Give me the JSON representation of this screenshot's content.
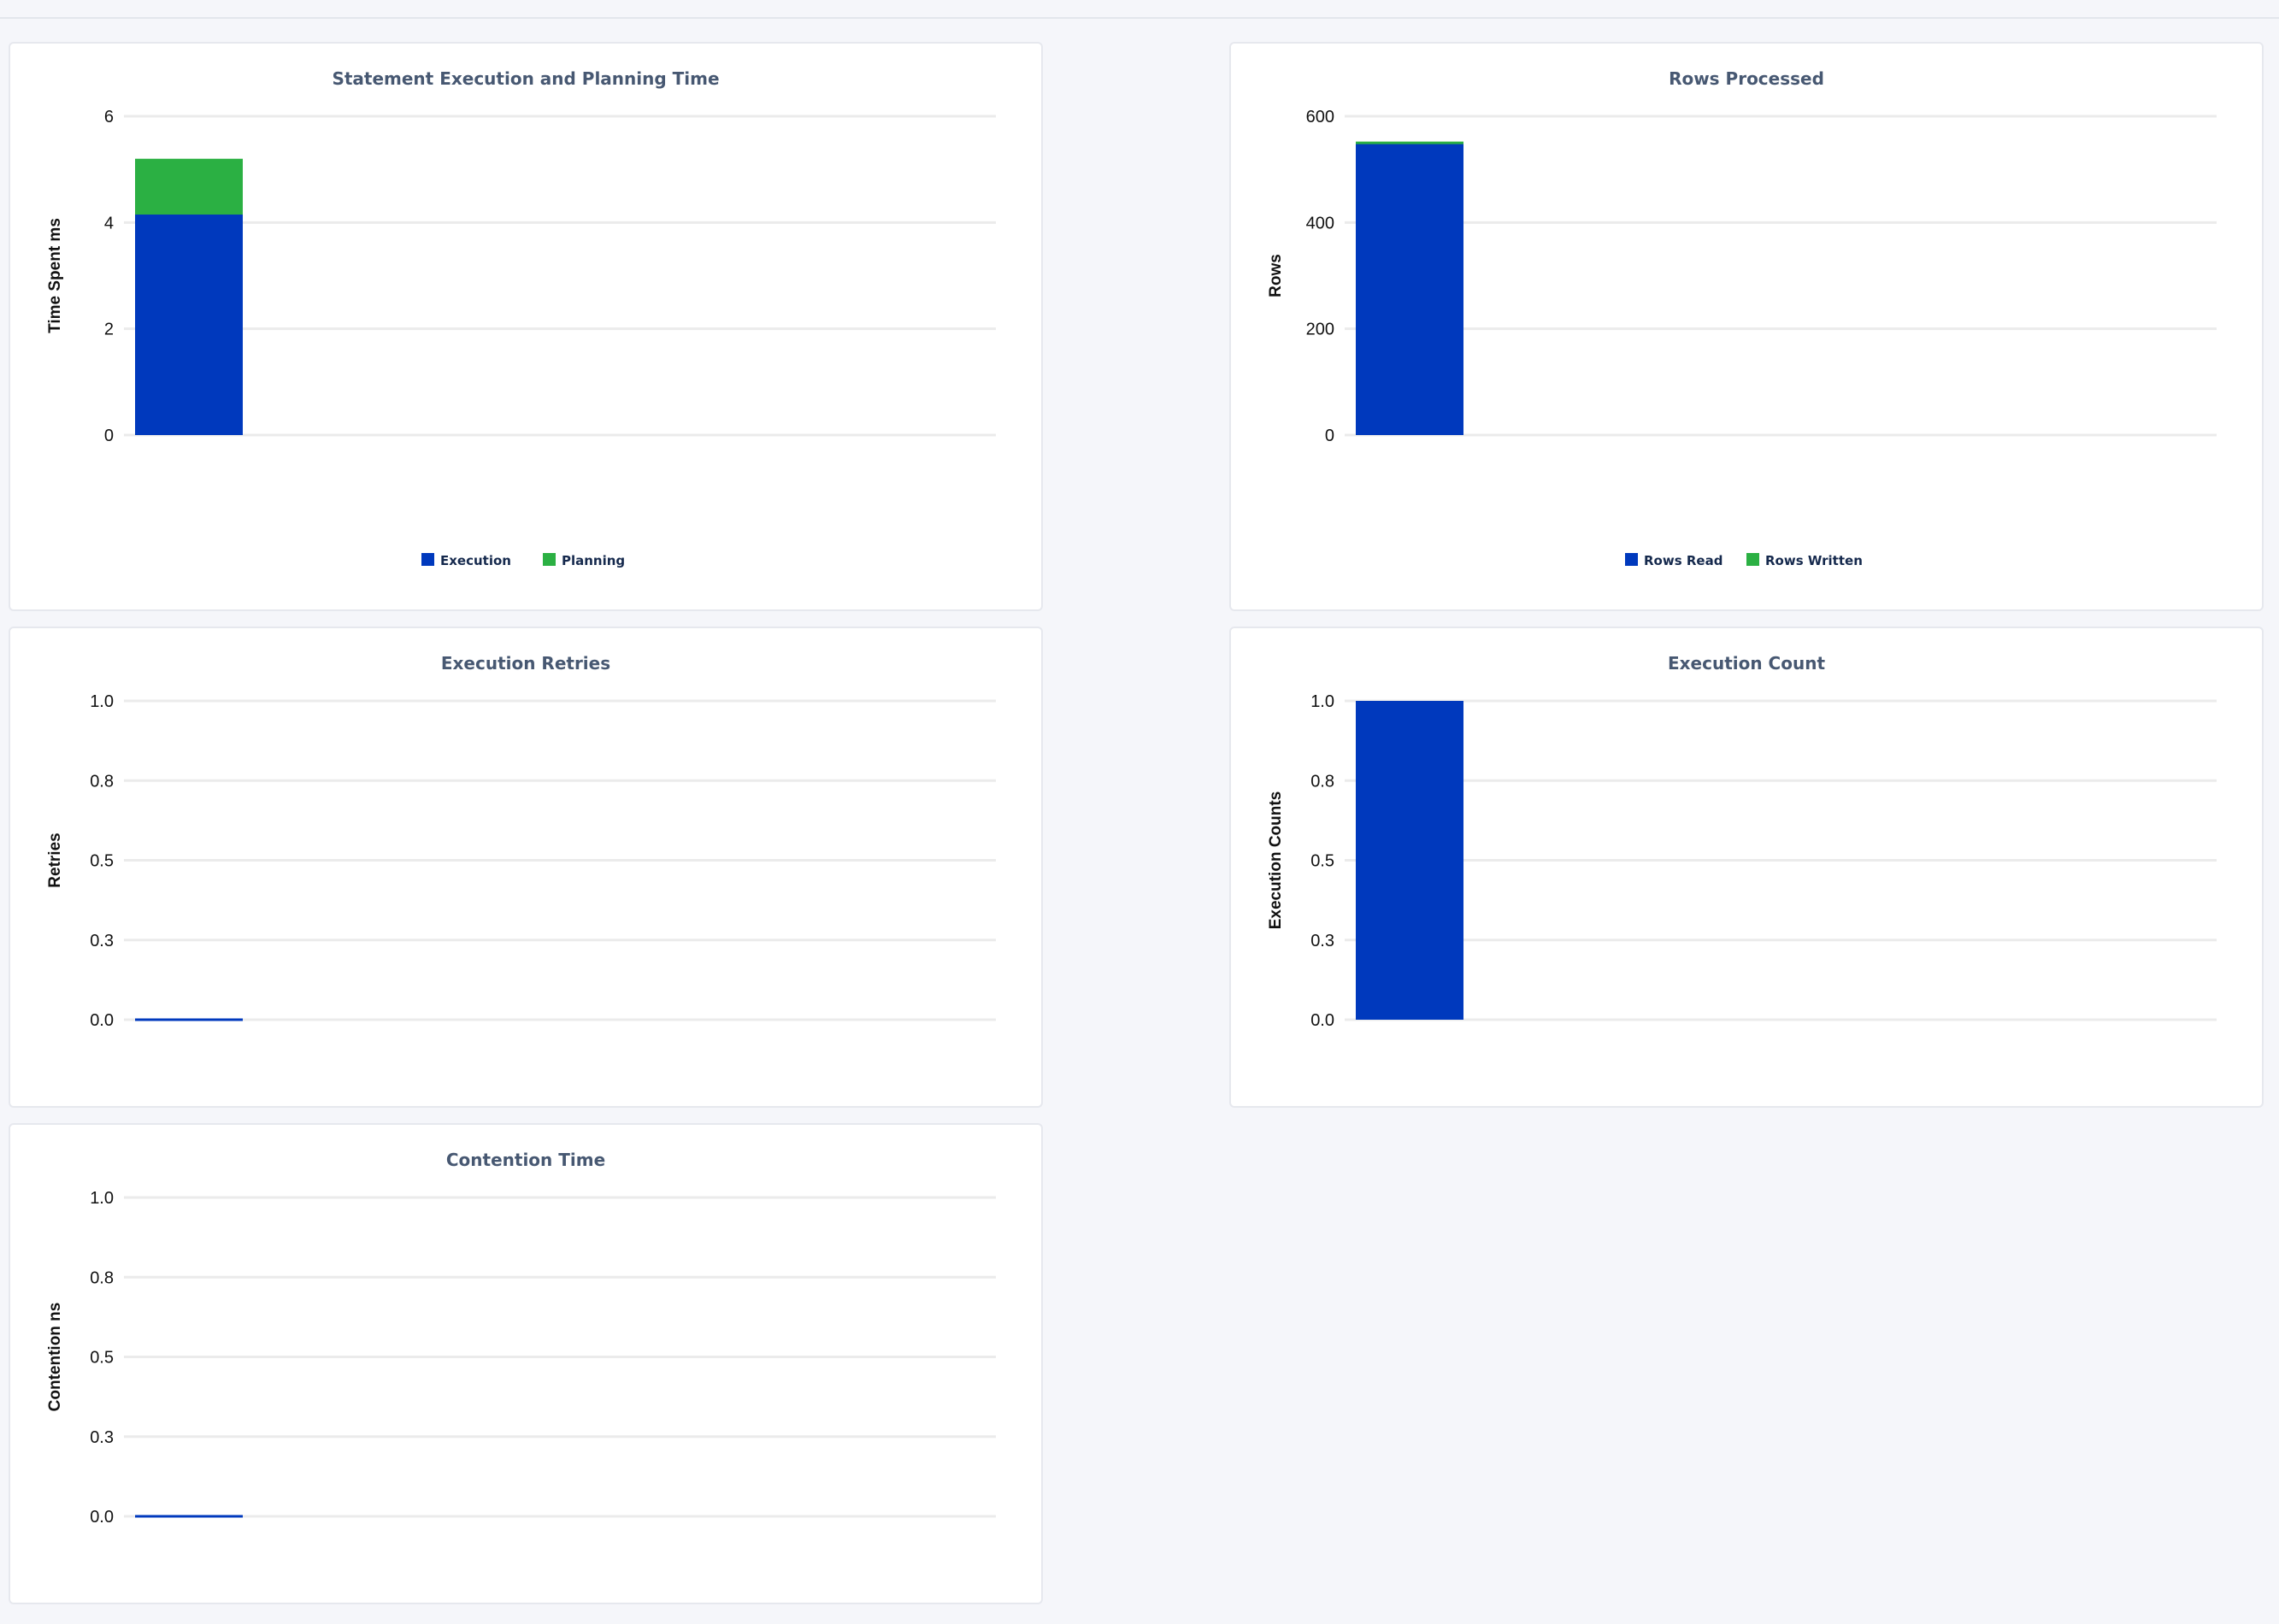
{
  "colors": {
    "blue": "#0039bd",
    "green": "#2bb043",
    "grid": "#ebebeb"
  },
  "chart_data": [
    {
      "type": "bar",
      "stacked": true,
      "title": "Statement Execution and Planning Time",
      "ylabel": "Time Spent ms",
      "ylim": [
        0,
        6
      ],
      "yticks": [
        0,
        2,
        4,
        6
      ],
      "ytick_labels": [
        "0",
        "2",
        "4",
        "6"
      ],
      "categories": [
        ""
      ],
      "series": [
        {
          "name": "Execution",
          "color": "#0039bd",
          "values": [
            4.15
          ]
        },
        {
          "name": "Planning",
          "color": "#2bb043",
          "values": [
            1.05
          ]
        }
      ],
      "legend": "bottom",
      "grid": true
    },
    {
      "type": "bar",
      "stacked": true,
      "title": "Rows Processed",
      "ylabel": "Rows",
      "ylim": [
        0,
        600
      ],
      "yticks": [
        0,
        200,
        400,
        600
      ],
      "ytick_labels": [
        "0",
        "200",
        "400",
        "600"
      ],
      "categories": [
        ""
      ],
      "series": [
        {
          "name": "Rows Read",
          "color": "#0039bd",
          "values": [
            550
          ]
        },
        {
          "name": "Rows Written",
          "color": "#2bb043",
          "values": [
            0
          ]
        }
      ],
      "legend": "bottom",
      "grid": true
    },
    {
      "type": "bar",
      "title": "Execution Retries",
      "ylabel": "Retries",
      "ylim": [
        0,
        1
      ],
      "yticks": [
        0,
        0.25,
        0.5,
        0.75,
        1
      ],
      "ytick_labels": [
        "0.0",
        "0.3",
        "0.5",
        "0.8",
        "1.0"
      ],
      "categories": [
        ""
      ],
      "series": [
        {
          "color": "#0039bd",
          "values": [
            0
          ]
        }
      ],
      "grid": true
    },
    {
      "type": "bar",
      "title": "Execution Count",
      "ylabel": "Execution Counts",
      "ylim": [
        0,
        1
      ],
      "yticks": [
        0,
        0.25,
        0.5,
        0.75,
        1
      ],
      "ytick_labels": [
        "0.0",
        "0.3",
        "0.5",
        "0.8",
        "1.0"
      ],
      "categories": [
        ""
      ],
      "series": [
        {
          "color": "#0039bd",
          "values": [
            1
          ]
        }
      ],
      "grid": true
    },
    {
      "type": "bar",
      "title": "Contention Time",
      "ylabel": "Contention ns",
      "ylim": [
        0,
        1
      ],
      "yticks": [
        0,
        0.25,
        0.5,
        0.75,
        1
      ],
      "ytick_labels": [
        "0.0",
        "0.3",
        "0.5",
        "0.8",
        "1.0"
      ],
      "categories": [
        ""
      ],
      "series": [
        {
          "color": "#0039bd",
          "values": [
            0
          ]
        }
      ],
      "grid": true
    }
  ]
}
